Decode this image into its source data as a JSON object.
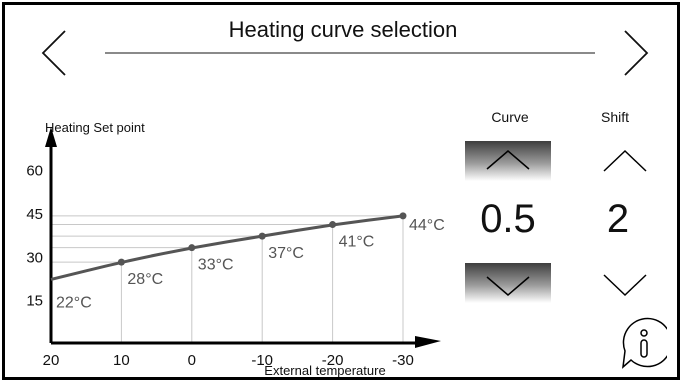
{
  "header": {
    "title": "Heating curve selection"
  },
  "controls": {
    "curve_label": "Curve",
    "shift_label": "Shift",
    "curve_value": "0.5",
    "shift_value": "2"
  },
  "icons": {
    "prev": "chevron-left-icon",
    "next": "chevron-right-icon",
    "increase": "chevron-up-icon",
    "decrease": "chevron-down-icon",
    "info": "info-bubble-icon"
  },
  "colors": {
    "curve": "#555555",
    "gridline": "#c8c8c8",
    "axis": "#000000"
  },
  "chart_data": {
    "type": "line",
    "ylabel": "Heating Set point",
    "xlabel": "External temperature",
    "x_ticks": [
      "20",
      "10",
      "0",
      "-10",
      "-20",
      "-30"
    ],
    "y_ticks": [
      "15",
      "30",
      "45",
      "60"
    ],
    "x_range": [
      20,
      -30
    ],
    "y_range": [
      0,
      72
    ],
    "x_reversed": true,
    "curve": [
      {
        "x": 20,
        "y": 22
      },
      {
        "x": 10,
        "y": 28
      },
      {
        "x": 0,
        "y": 33
      },
      {
        "x": -10,
        "y": 37
      },
      {
        "x": -20,
        "y": 41
      },
      {
        "x": -30,
        "y": 44
      }
    ],
    "points": [
      {
        "x": 10,
        "y": 28,
        "label": "28°C"
      },
      {
        "x": 0,
        "y": 33,
        "label": "33°C"
      },
      {
        "x": -10,
        "y": 37,
        "label": "37°C"
      },
      {
        "x": -20,
        "y": 41,
        "label": "41°C"
      },
      {
        "x": -30,
        "y": 44,
        "label": "44°C"
      }
    ],
    "start_label": "22°C"
  }
}
